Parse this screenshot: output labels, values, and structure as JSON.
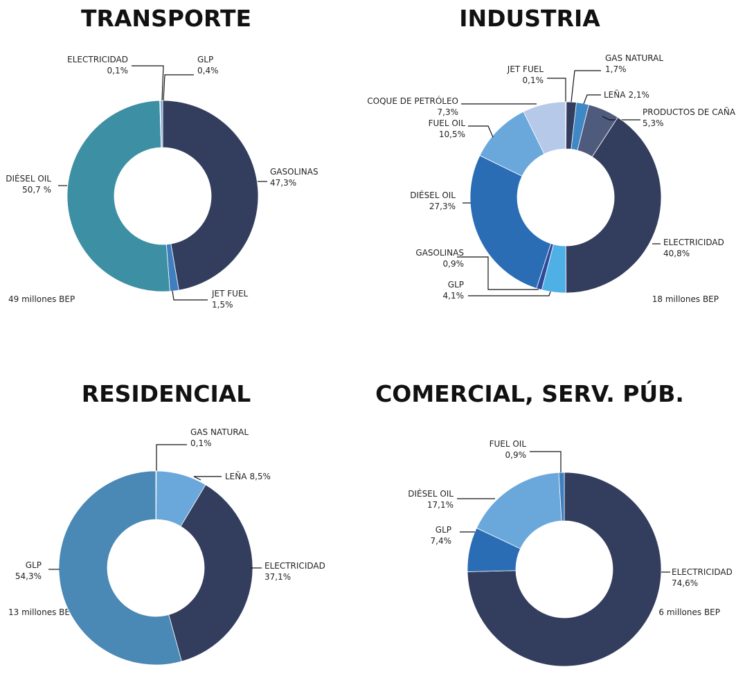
{
  "chart_data": [
    {
      "type": "pie",
      "title": "TRANSPORTE",
      "annotation": "49 millones BEP",
      "categories": [
        "GASOLINAS",
        "JET FUEL",
        "DIÉSEL OIL",
        "ELECTRICIDAD",
        "GLP"
      ],
      "values": [
        47.3,
        1.5,
        50.7,
        0.1,
        0.4
      ],
      "value_labels": [
        "47,3%",
        "1,5%",
        "50,7 %",
        "0,1%",
        "0,4%"
      ],
      "colors": [
        "#333d5e",
        "#3f7fbf",
        "#3d8fa3",
        "#a9c4e4",
        "#7aa7d6"
      ]
    },
    {
      "type": "pie",
      "title": "INDUSTRIA",
      "annotation": "18 millones BEP",
      "categories": [
        "JET FUEL",
        "GAS NATURAL",
        "LEÑA",
        "PRODUCTOS DE CAÑA",
        "ELECTRICIDAD",
        "GLP",
        "GASOLINAS",
        "DIÉSEL OIL",
        "FUEL OIL",
        "COQUE DE PETRÓLEO"
      ],
      "values": [
        0.1,
        1.7,
        2.1,
        5.3,
        40.8,
        4.1,
        0.9,
        27.3,
        10.5,
        7.3
      ],
      "value_labels": [
        "0,1%",
        "1,7%",
        "2,1%",
        "5,3%",
        "40,8%",
        "4,1%",
        "0,9%",
        "27,3%",
        "10,5%",
        "7,3%"
      ],
      "colors": [
        "#2b3454",
        "#333d5e",
        "#3f88c5",
        "#4f5b7c",
        "#333d5e",
        "#4fb0e6",
        "#2e4a9a",
        "#2a6db5",
        "#6aa8dc",
        "#b7c9e8"
      ]
    },
    {
      "type": "pie",
      "title": "RESIDENCIAL",
      "annotation": "13 millones BEP",
      "categories": [
        "GAS NATURAL",
        "LEÑA",
        "ELECTRICIDAD",
        "GLP"
      ],
      "values": [
        0.1,
        8.5,
        37.1,
        54.3
      ],
      "value_labels": [
        "0,1%",
        "8,5%",
        "37,1%",
        "54,3%"
      ],
      "colors": [
        "#333d5e",
        "#6aa8dc",
        "#333d5e",
        "#4a88b6"
      ]
    },
    {
      "type": "pie",
      "title": "COMERCIAL, SERV. PÚB.",
      "annotation": "6 millones BEP",
      "categories": [
        "ELECTRICIDAD",
        "GLP",
        "DIÉSEL OIL",
        "FUEL OIL"
      ],
      "values": [
        74.6,
        7.4,
        17.1,
        0.9
      ],
      "value_labels": [
        "74,6%",
        "7,4%",
        "17,1%",
        "0,9%"
      ],
      "colors": [
        "#333d5e",
        "#2a6db5",
        "#6aa8dc",
        "#3f7fbf"
      ]
    }
  ]
}
